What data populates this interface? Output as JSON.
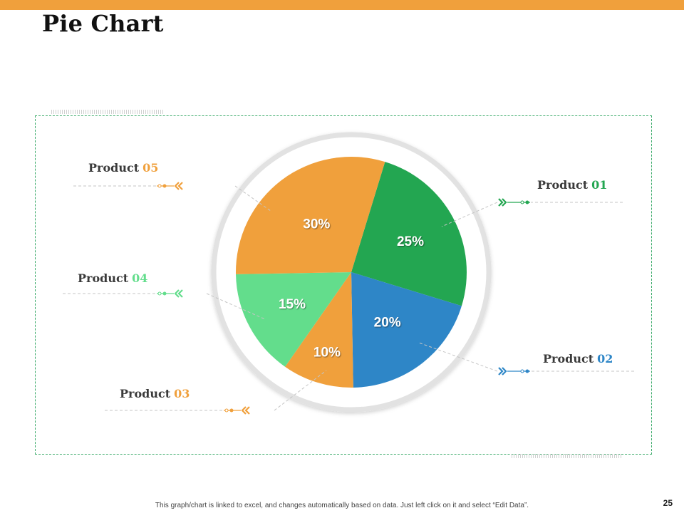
{
  "slide": {
    "title": "Pie Chart",
    "footnote": "This graph/chart is linked to excel, and changes automatically based on data. Just left click on it and select “Edit Data”.",
    "page_number": "25",
    "accent_color": "#f0a03c",
    "frame_color": "#3cab6b"
  },
  "chart_data": {
    "type": "pie",
    "title": "Pie Chart",
    "slices": [
      {
        "name": "Product 01",
        "prefix": "Product",
        "num": "01",
        "value": 25,
        "label": "25%",
        "color": "#23a651"
      },
      {
        "name": "Product 02",
        "prefix": "Product",
        "num": "02",
        "value": 20,
        "label": "20%",
        "color": "#2e86c7"
      },
      {
        "name": "Product 03",
        "prefix": "Product",
        "num": "03",
        "value": 10,
        "label": "10%",
        "color": "#f0a03c"
      },
      {
        "name": "Product 04",
        "prefix": "Product",
        "num": "04",
        "value": 15,
        "label": "15%",
        "color": "#63dd8c"
      },
      {
        "name": "Product 05",
        "prefix": "Product",
        "num": "05",
        "value": 30,
        "label": "30%",
        "color": "#f0a03c"
      }
    ]
  }
}
